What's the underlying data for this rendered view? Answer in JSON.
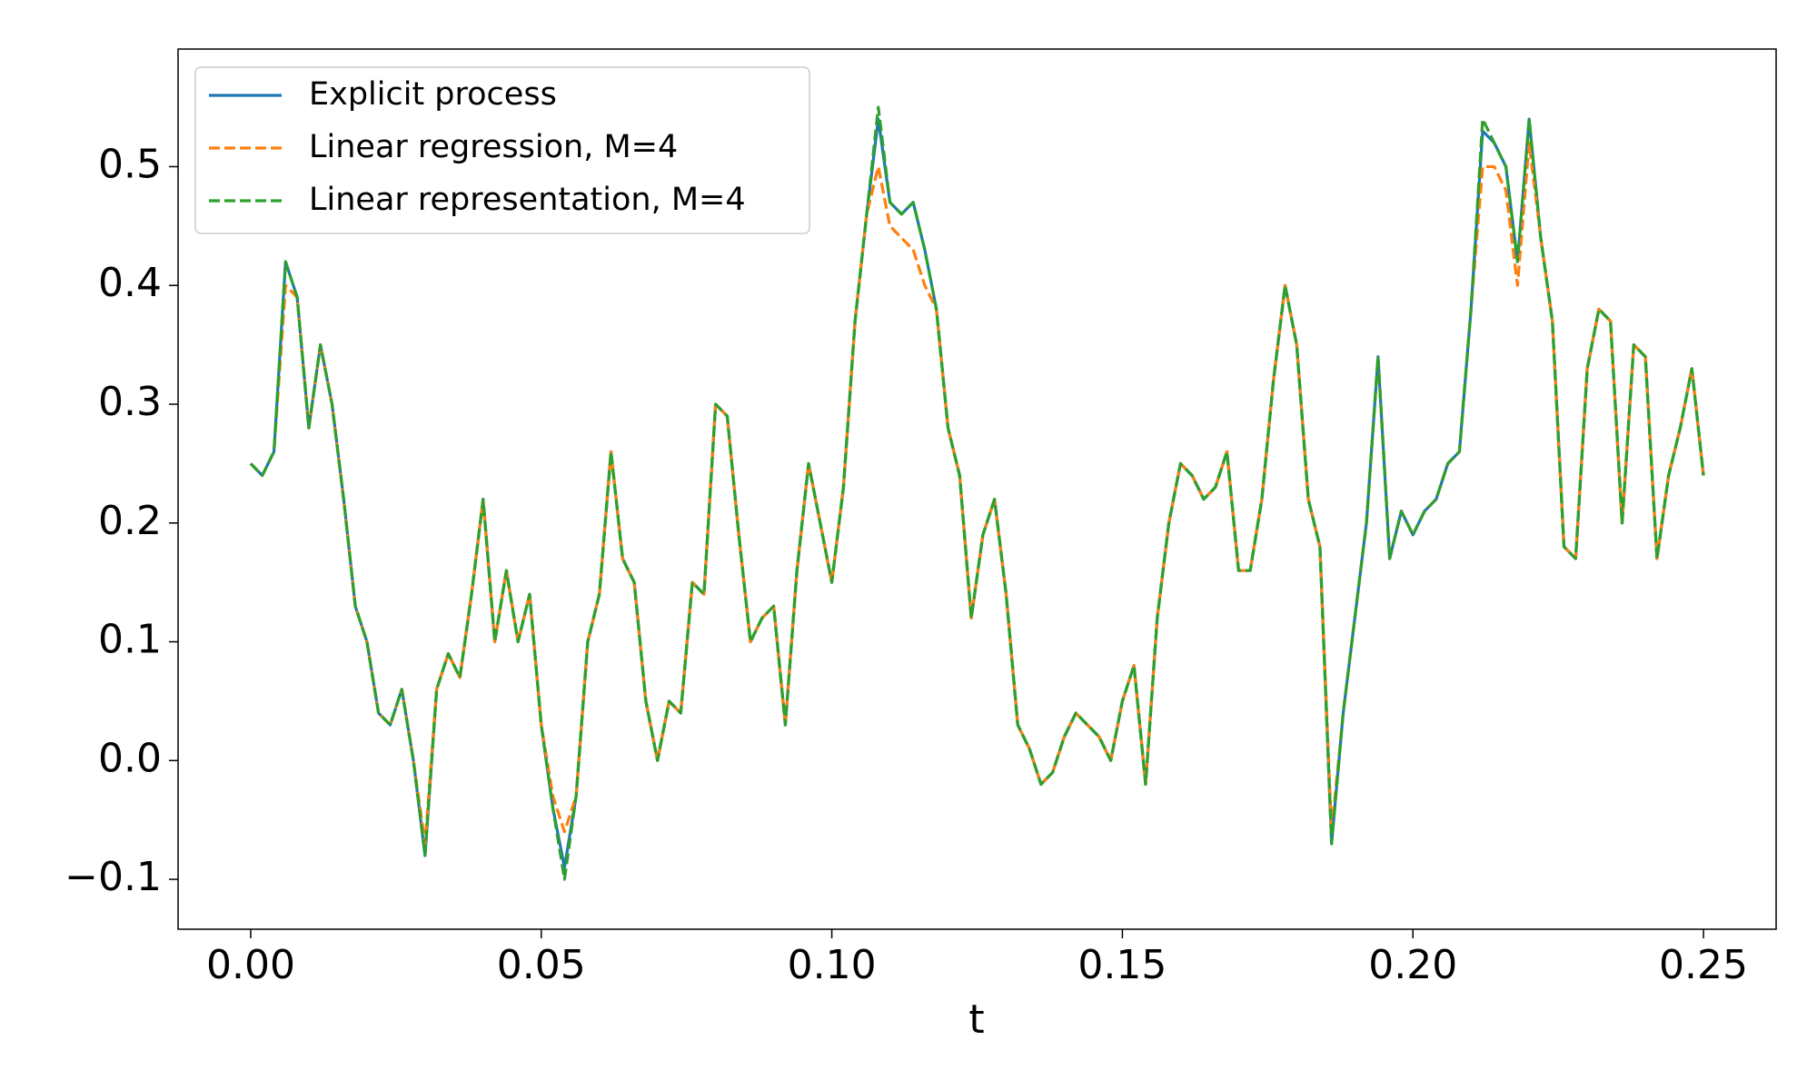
{
  "chart_data": {
    "type": "line",
    "xlabel": "t",
    "xlim": [
      -0.0125,
      0.2625
    ],
    "ylim": [
      -0.142,
      0.599
    ],
    "xticks": [
      {
        "value": 0,
        "label": "0.00"
      },
      {
        "value": 0.05,
        "label": "0.05"
      },
      {
        "value": 0.1,
        "label": "0.10"
      },
      {
        "value": 0.15,
        "label": "0.15"
      },
      {
        "value": 0.2,
        "label": "0.20"
      },
      {
        "value": 0.25,
        "label": "0.25"
      }
    ],
    "yticks": [
      {
        "value": -0.1,
        "label": "−0.1"
      },
      {
        "value": 0,
        "label": "0.0"
      },
      0.1,
      0.2,
      0.3,
      0.4,
      0.5
    ],
    "grid": false,
    "legend": "upper left",
    "x": [
      0,
      0.002,
      0.004,
      0.006,
      0.008,
      0.01,
      0.012,
      0.014,
      0.016,
      0.018,
      0.02,
      0.022,
      0.024,
      0.026,
      0.028,
      0.03,
      0.032,
      0.034,
      0.036,
      0.038,
      0.04,
      0.042,
      0.044,
      0.046,
      0.048,
      0.05,
      0.052,
      0.054,
      0.056,
      0.058,
      0.06,
      0.062,
      0.064,
      0.066,
      0.068,
      0.07,
      0.072,
      0.074,
      0.076,
      0.078,
      0.08,
      0.082,
      0.084,
      0.086,
      0.088,
      0.09,
      0.092,
      0.094,
      0.096,
      0.098,
      0.1,
      0.102,
      0.104,
      0.106,
      0.108,
      0.11,
      0.112,
      0.114,
      0.116,
      0.118,
      0.12,
      0.122,
      0.124,
      0.126,
      0.128,
      0.13,
      0.132,
      0.134,
      0.136,
      0.138,
      0.14,
      0.142,
      0.144,
      0.146,
      0.148,
      0.15,
      0.152,
      0.154,
      0.156,
      0.158,
      0.16,
      0.162,
      0.164,
      0.166,
      0.168,
      0.17,
      0.172,
      0.174,
      0.176,
      0.178,
      0.18,
      0.182,
      0.184,
      0.186,
      0.188,
      0.19,
      0.192,
      0.194,
      0.196,
      0.198,
      0.2,
      0.202,
      0.204,
      0.206,
      0.208,
      0.21,
      0.212,
      0.214,
      0.216,
      0.218,
      0.22,
      0.222,
      0.224,
      0.226,
      0.228,
      0.23,
      0.232,
      0.234,
      0.236,
      0.238,
      0.24,
      0.242,
      0.244,
      0.246,
      0.248,
      0.25
    ],
    "series": [
      {
        "name": "Explicit process",
        "color": "#1f77b4",
        "linestyle": "solid",
        "values": [
          0.25,
          0.24,
          0.26,
          0.42,
          0.39,
          0.28,
          0.35,
          0.3,
          0.22,
          0.13,
          0.1,
          0.04,
          0.03,
          0.06,
          0.0,
          -0.08,
          0.06,
          0.09,
          0.07,
          0.14,
          0.22,
          0.1,
          0.16,
          0.1,
          0.14,
          0.03,
          -0.04,
          -0.09,
          -0.03,
          0.1,
          0.14,
          0.26,
          0.17,
          0.15,
          0.05,
          0.0,
          0.05,
          0.04,
          0.15,
          0.14,
          0.3,
          0.29,
          0.19,
          0.1,
          0.12,
          0.13,
          0.03,
          0.16,
          0.25,
          0.2,
          0.15,
          0.23,
          0.37,
          0.46,
          0.54,
          0.47,
          0.46,
          0.47,
          0.43,
          0.38,
          0.28,
          0.24,
          0.12,
          0.19,
          0.22,
          0.14,
          0.03,
          0.01,
          -0.02,
          -0.01,
          0.02,
          0.04,
          0.03,
          0.02,
          0.0,
          0.05,
          0.08,
          -0.02,
          0.12,
          0.2,
          0.25,
          0.24,
          0.22,
          0.23,
          0.26,
          0.16,
          0.16,
          0.22,
          0.32,
          0.4,
          0.35,
          0.22,
          0.18,
          -0.07,
          0.04,
          0.12,
          0.2,
          0.34,
          0.17,
          0.21,
          0.19,
          0.21,
          0.22,
          0.25,
          0.26,
          0.38,
          0.53,
          0.52,
          0.5,
          0.42,
          0.54,
          0.44,
          0.37,
          0.18,
          0.17,
          0.33,
          0.38,
          0.37,
          0.2,
          0.35,
          0.34,
          0.17,
          0.24,
          0.28,
          0.33,
          0.24
        ]
      },
      {
        "name": "Linear regression, M=4",
        "color": "#ff7f0e",
        "linestyle": "dashed",
        "values": [
          0.25,
          0.24,
          0.26,
          0.4,
          0.39,
          0.28,
          0.35,
          0.3,
          0.22,
          0.13,
          0.1,
          0.04,
          0.03,
          0.06,
          0.0,
          -0.07,
          0.06,
          0.09,
          0.07,
          0.14,
          0.22,
          0.1,
          0.16,
          0.1,
          0.14,
          0.03,
          -0.03,
          -0.06,
          -0.03,
          0.1,
          0.14,
          0.26,
          0.17,
          0.15,
          0.05,
          0.0,
          0.05,
          0.04,
          0.15,
          0.14,
          0.3,
          0.29,
          0.19,
          0.1,
          0.12,
          0.13,
          0.03,
          0.16,
          0.25,
          0.2,
          0.15,
          0.23,
          0.37,
          0.46,
          0.5,
          0.45,
          0.44,
          0.43,
          0.4,
          0.38,
          0.28,
          0.24,
          0.12,
          0.19,
          0.22,
          0.14,
          0.03,
          0.01,
          -0.02,
          -0.01,
          0.02,
          0.04,
          0.03,
          0.02,
          0.0,
          0.05,
          0.08,
          -0.02,
          0.12,
          0.2,
          0.25,
          0.24,
          0.22,
          0.23,
          0.26,
          0.16,
          0.16,
          0.22,
          0.32,
          0.4,
          0.35,
          0.22,
          0.18,
          -0.06,
          0.04,
          0.12,
          0.2,
          0.34,
          0.17,
          0.21,
          0.19,
          0.21,
          0.22,
          0.25,
          0.26,
          0.38,
          0.5,
          0.5,
          0.48,
          0.4,
          0.52,
          0.44,
          0.37,
          0.18,
          0.17,
          0.33,
          0.38,
          0.37,
          0.2,
          0.35,
          0.34,
          0.17,
          0.24,
          0.28,
          0.33,
          0.24
        ]
      },
      {
        "name": "Linear representation, M=4",
        "color": "#2ca02c",
        "linestyle": "dashed",
        "values": [
          0.25,
          0.24,
          0.26,
          0.42,
          0.39,
          0.28,
          0.35,
          0.3,
          0.22,
          0.13,
          0.1,
          0.04,
          0.03,
          0.06,
          0.0,
          -0.08,
          0.06,
          0.09,
          0.07,
          0.14,
          0.22,
          0.1,
          0.16,
          0.1,
          0.14,
          0.03,
          -0.04,
          -0.1,
          -0.03,
          0.1,
          0.14,
          0.26,
          0.17,
          0.15,
          0.05,
          0.0,
          0.05,
          0.04,
          0.15,
          0.14,
          0.3,
          0.29,
          0.19,
          0.1,
          0.12,
          0.13,
          0.03,
          0.16,
          0.25,
          0.2,
          0.15,
          0.23,
          0.37,
          0.46,
          0.55,
          0.47,
          0.46,
          0.47,
          0.43,
          0.38,
          0.28,
          0.24,
          0.12,
          0.19,
          0.22,
          0.14,
          0.03,
          0.01,
          -0.02,
          -0.01,
          0.02,
          0.04,
          0.03,
          0.02,
          0.0,
          0.05,
          0.08,
          -0.02,
          0.12,
          0.2,
          0.25,
          0.24,
          0.22,
          0.23,
          0.26,
          0.16,
          0.16,
          0.22,
          0.32,
          0.4,
          0.35,
          0.22,
          0.18,
          -0.07,
          0.04,
          0.12,
          0.2,
          0.34,
          0.17,
          0.21,
          0.19,
          0.21,
          0.22,
          0.25,
          0.26,
          0.38,
          0.54,
          0.52,
          0.5,
          0.42,
          0.54,
          0.44,
          0.37,
          0.18,
          0.17,
          0.33,
          0.38,
          0.37,
          0.2,
          0.35,
          0.34,
          0.17,
          0.24,
          0.28,
          0.33,
          0.24
        ]
      }
    ]
  }
}
